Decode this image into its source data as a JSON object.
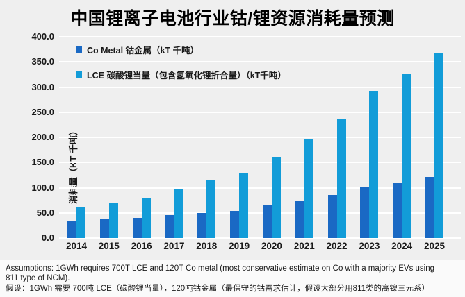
{
  "page": {
    "title": "中国锂离子电池行业钴/锂资源消耗量预测"
  },
  "chart_data": {
    "type": "bar",
    "title": "中国锂离子电池行业钴/锂资源消耗量预测",
    "ylabel": "消耗量（KT 千吨）",
    "xlabel": "",
    "categories": [
      "2014",
      "2015",
      "2016",
      "2017",
      "2018",
      "2019",
      "2020",
      "2021",
      "2022",
      "2023",
      "2024",
      "2025"
    ],
    "series": [
      {
        "name": "Co Metal 钴金属（kT 千吨）",
        "color": "#1a69c4",
        "values": [
          35,
          37,
          40,
          45,
          50,
          54,
          65,
          75,
          85,
          101,
          110,
          122
        ]
      },
      {
        "name": "LCE 碳酸锂当量（包含氢氧化锂折合量）（kT千吨）",
        "color": "#129cd8",
        "values": [
          61,
          69,
          79,
          97,
          115,
          130,
          161,
          196,
          236,
          292,
          325,
          368
        ]
      }
    ],
    "ylim": [
      0,
      400
    ],
    "ytick_step": 50,
    "ytick_decimals": 1,
    "grid": true,
    "gridline_color": "#ffffff",
    "background_color": "#efefef",
    "legend_position": "top-left"
  },
  "footnote": {
    "line1": "Assumptions: 1GWh requires 700T LCE and 120T Co metal (most conservative estimate on Co with a majority EVs using",
    "line2": "811 type of NCM).",
    "line3": "假设：1GWh 需要 700吨 LCE（碳酸锂当量），120吨钴金属（最保守的钴需求估计，假设大部分用811类的高镍三元系）"
  }
}
